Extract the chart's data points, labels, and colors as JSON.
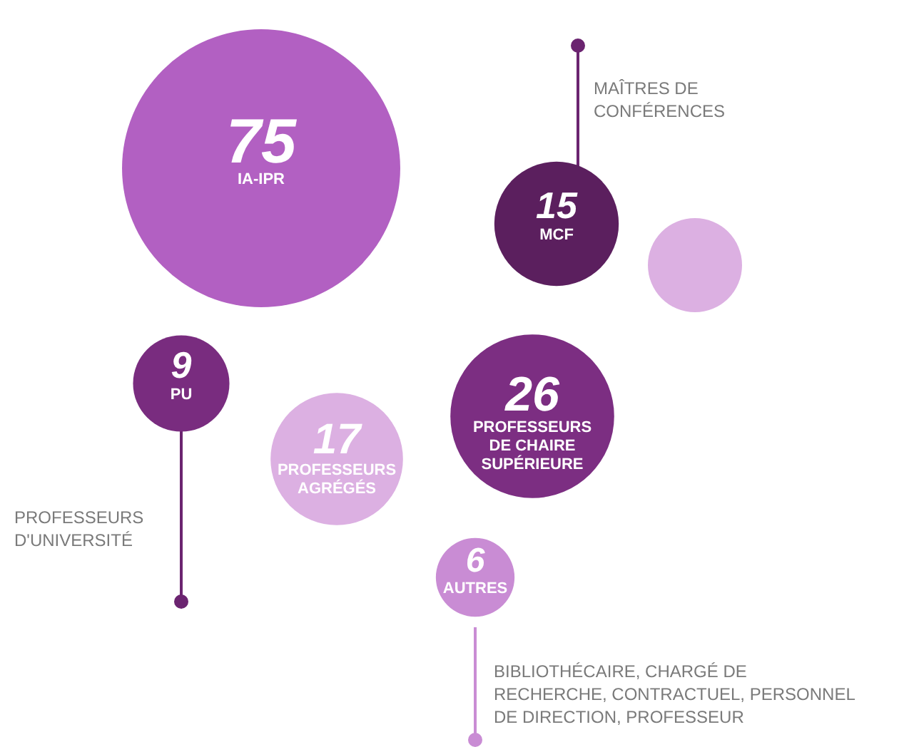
{
  "chart_data": {
    "type": "other",
    "categories": [
      "IA-IPR",
      "MCF",
      "PU",
      "PROFESSEURS\nAGRÉGÉS",
      "PROFESSEURS\nDE CHAIRE\nSUPÉRIEURE",
      "AUTRES"
    ],
    "values": [
      75,
      15,
      9,
      17,
      26,
      6
    ],
    "colors": [
      "#b260c2",
      "#5b1f5e",
      "#792c7f",
      "#dcb0e2",
      "#7c2e82",
      "#c98cd4"
    ],
    "data_labels": true,
    "annotations": [
      "MAÎTRES DE\nCONFÉRENCES",
      "PROFESSEURS\nD'UNIVERSITÉ",
      "BIBLIOTHÉCAIRE, CHARGÉ DE\nRECHERCHE, CONTRACTUEL, PERSONNEL\nDE DIRECTION, PROFESSEUR"
    ]
  }
}
